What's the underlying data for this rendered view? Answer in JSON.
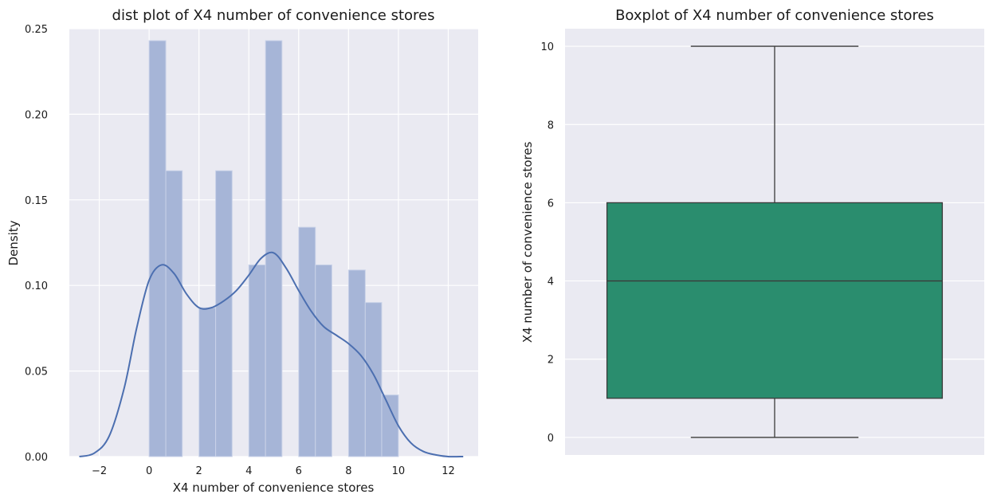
{
  "chart_data": [
    {
      "type": "histogram",
      "title": "dist plot of X4 number of convenience stores",
      "xlabel": "X4 number of convenience stores",
      "ylabel": "Density",
      "xlim": [
        -3.2,
        13.2
      ],
      "ylim": [
        0,
        0.25
      ],
      "xticks": [
        -2,
        0,
        2,
        4,
        6,
        8,
        10,
        12
      ],
      "yticks": [
        0.0,
        0.05,
        0.1,
        0.15,
        0.2,
        0.25
      ],
      "xtick_labels": [
        "−2",
        "0",
        "2",
        "4",
        "6",
        "8",
        "10",
        "12"
      ],
      "ytick_labels": [
        "0.00",
        "0.05",
        "0.10",
        "0.15",
        "0.20",
        "0.25"
      ],
      "grid": true,
      "bins": [
        {
          "x0": 0.0,
          "x1": 0.67,
          "density": 0.243
        },
        {
          "x0": 0.67,
          "x1": 1.33,
          "density": 0.167
        },
        {
          "x0": 1.33,
          "x1": 2.0,
          "density": 0.0
        },
        {
          "x0": 2.0,
          "x1": 2.67,
          "density": 0.087
        },
        {
          "x0": 2.67,
          "x1": 3.33,
          "density": 0.167
        },
        {
          "x0": 3.33,
          "x1": 4.0,
          "density": 0.0
        },
        {
          "x0": 4.0,
          "x1": 4.67,
          "density": 0.112
        },
        {
          "x0": 4.67,
          "x1": 5.33,
          "density": 0.243
        },
        {
          "x0": 5.33,
          "x1": 6.0,
          "density": 0.0
        },
        {
          "x0": 6.0,
          "x1": 6.67,
          "density": 0.134
        },
        {
          "x0": 6.67,
          "x1": 7.33,
          "density": 0.112
        },
        {
          "x0": 7.33,
          "x1": 8.0,
          "density": 0.0
        },
        {
          "x0": 8.0,
          "x1": 8.67,
          "density": 0.109
        },
        {
          "x0": 8.67,
          "x1": 9.33,
          "density": 0.09
        },
        {
          "x0": 9.33,
          "x1": 10.0,
          "density": 0.036
        }
      ],
      "kde": {
        "x": [
          -2.8,
          -2.2,
          -1.6,
          -1.0,
          -0.5,
          0.0,
          0.5,
          1.0,
          1.5,
          2.0,
          2.5,
          3.0,
          3.5,
          4.0,
          4.5,
          5.0,
          5.5,
          6.0,
          6.5,
          7.0,
          7.5,
          8.0,
          8.5,
          9.0,
          9.5,
          10.0,
          10.5,
          11.0,
          11.5,
          12.0,
          12.6
        ],
        "y": [
          0.0,
          0.002,
          0.012,
          0.04,
          0.075,
          0.103,
          0.112,
          0.107,
          0.095,
          0.087,
          0.087,
          0.091,
          0.097,
          0.106,
          0.116,
          0.119,
          0.11,
          0.097,
          0.085,
          0.076,
          0.071,
          0.066,
          0.059,
          0.048,
          0.033,
          0.018,
          0.008,
          0.003,
          0.001,
          0.0,
          0.0
        ]
      }
    },
    {
      "type": "box",
      "title": "Boxplot of X4 number of convenience stores",
      "ylabel": "X4 number of convenience stores",
      "ylim": [
        -0.45,
        10.45
      ],
      "yticks": [
        0,
        2,
        4,
        6,
        8,
        10
      ],
      "ytick_labels": [
        "0",
        "2",
        "4",
        "6",
        "8",
        "10"
      ],
      "grid": true,
      "box_color": "#2a8d6e",
      "stats": {
        "min": 0,
        "q1": 1,
        "median": 4,
        "q3": 6,
        "max": 10
      }
    }
  ]
}
